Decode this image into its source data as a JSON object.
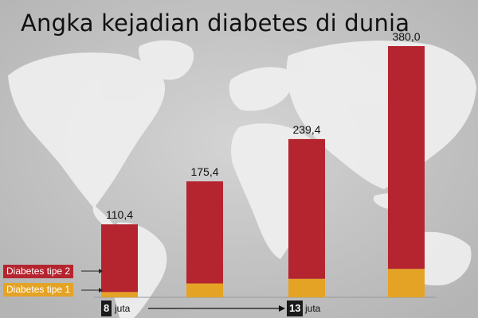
{
  "title": "Angka kejadian diabetes di dunia",
  "colors": {
    "type2": "#b5252f",
    "type1": "#e5a325",
    "background": "#c6c6c6",
    "map": "#f0f0f0"
  },
  "legend": {
    "type2": "Diabetes tipe 2",
    "type1": "Diabetes tipe 1"
  },
  "footer": {
    "start_number": "8",
    "start_unit": "juta",
    "end_number": "13",
    "end_unit": "juta"
  },
  "chart_data": {
    "type": "bar",
    "stacked": true,
    "title": "Angka kejadian diabetes di dunia",
    "unit": "juta",
    "categories": [
      "",
      "",
      "",
      ""
    ],
    "totals": [
      110.4,
      175.4,
      239.4,
      380.0
    ],
    "value_labels": [
      "110,4",
      "175,4",
      "239,4",
      "380,0"
    ],
    "series": [
      {
        "name": "Diabetes tipe 2",
        "values": [
          102.4,
          154.4,
          211.4,
          337.0
        ]
      },
      {
        "name": "Diabetes tipe 1",
        "values": [
          8,
          21,
          28,
          43
        ]
      }
    ],
    "ylim": [
      0,
      380
    ],
    "grid": false,
    "legend_position": "left-bottom"
  }
}
